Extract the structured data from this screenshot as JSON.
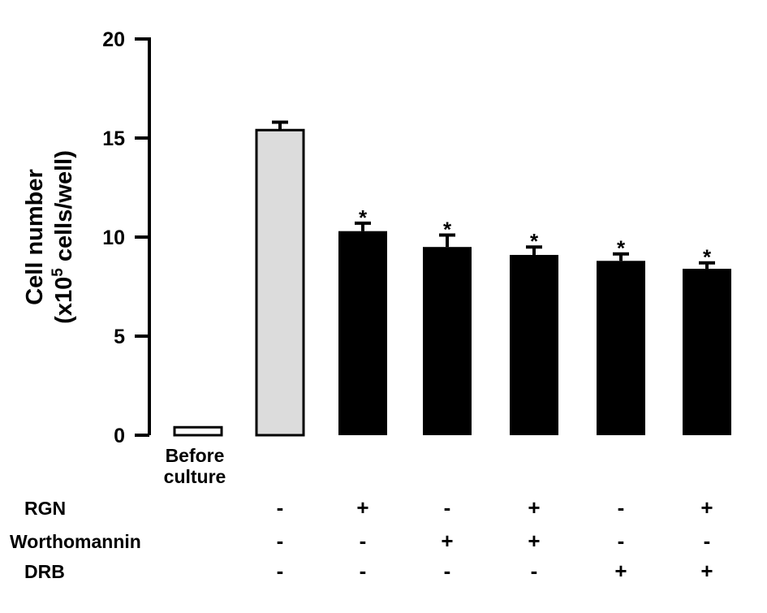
{
  "chart_data": {
    "type": "bar",
    "ylabel_line1": "Cell number",
    "ylabel_line2_prefix": "(x10",
    "ylabel_line2_sup": "5",
    "ylabel_line2_suffix": " cells/well)",
    "ylim": [
      0,
      20
    ],
    "yticks": [
      "0",
      "5",
      "10",
      "15",
      "20"
    ],
    "categories": [
      "Before culture",
      "",
      "",
      "",
      "",
      "",
      ""
    ],
    "category_label_lines": [
      "Before",
      "culture"
    ],
    "values": [
      0.4,
      15.4,
      10.3,
      9.5,
      9.1,
      8.8,
      8.4
    ],
    "errors": [
      0,
      0.4,
      0.4,
      0.6,
      0.4,
      0.35,
      0.3
    ],
    "significance": [
      "",
      "",
      "*",
      "*",
      "*",
      "*",
      "*"
    ],
    "bar_fill": [
      "#ffffff",
      "#dcdcdc",
      "#000000",
      "#000000",
      "#000000",
      "#000000",
      "#000000"
    ],
    "grid": false
  },
  "treatment_table": {
    "rows": [
      {
        "label": "RGN",
        "signs": [
          "-",
          "+",
          "-",
          "+",
          "-",
          "+"
        ]
      },
      {
        "label": "Worthomannin",
        "signs": [
          "-",
          "-",
          "+",
          "+",
          "-",
          "-"
        ]
      },
      {
        "label": "DRB",
        "signs": [
          "-",
          "-",
          "-",
          "-",
          "+",
          "+"
        ]
      }
    ]
  }
}
